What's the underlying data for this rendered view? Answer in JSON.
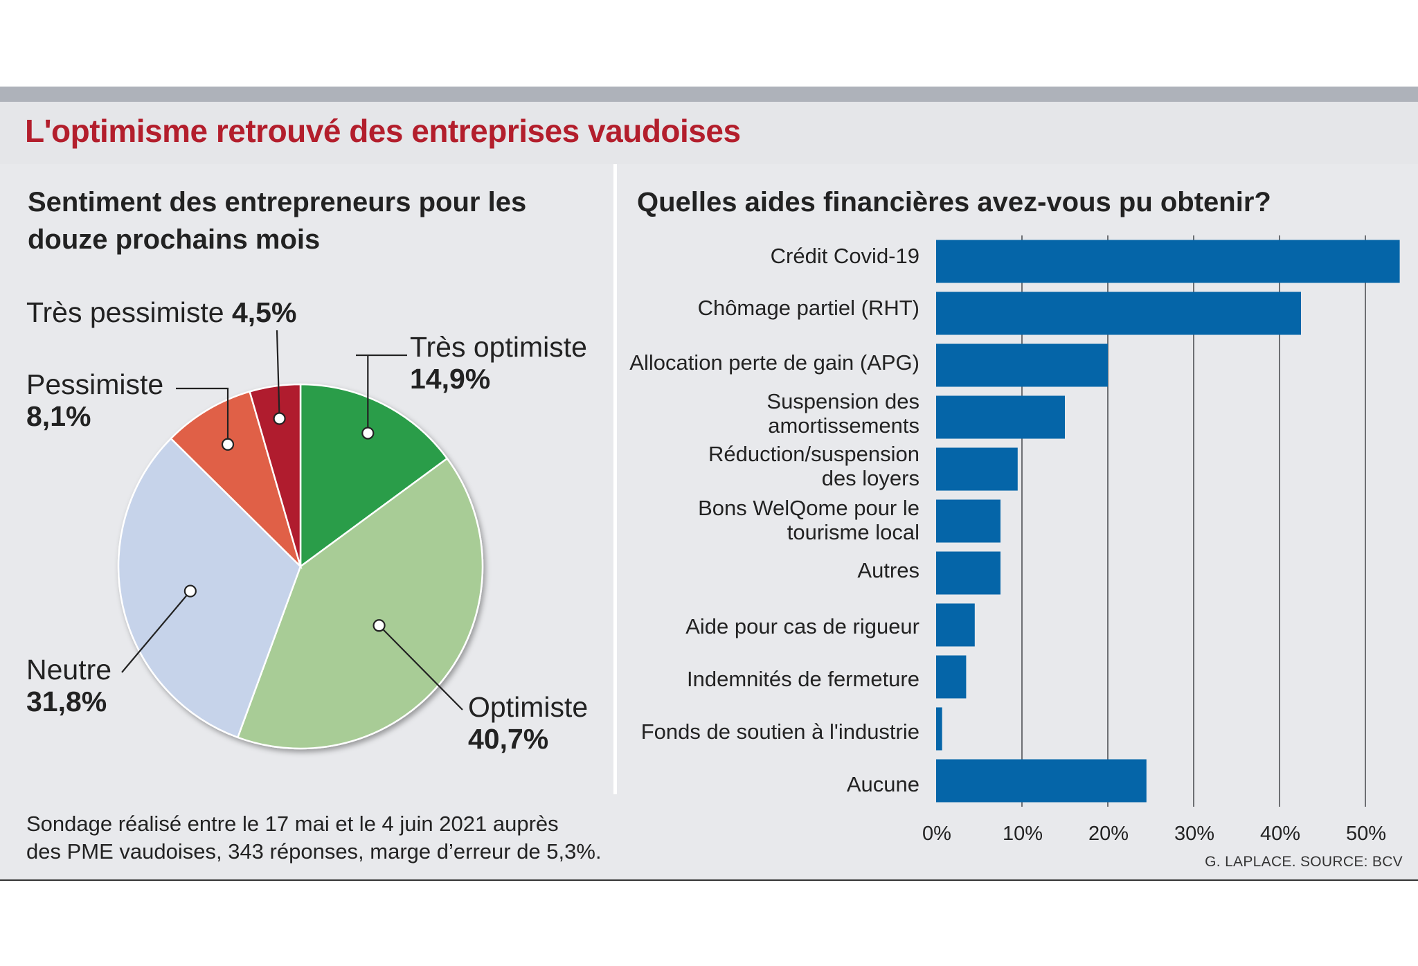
{
  "header": {
    "title": "L'optimisme retrouvé des entreprises vaudoises"
  },
  "chart_data": [
    {
      "type": "pie",
      "title": "Sentiment des entrepreneurs pour les douze prochains mois",
      "slices": [
        {
          "label": "Très optimiste",
          "value": 14.9,
          "display": "14,9%",
          "color": "#2a9d4a"
        },
        {
          "label": "Optimiste",
          "value": 40.7,
          "display": "40,7%",
          "color": "#a8cc96"
        },
        {
          "label": "Neutre",
          "value": 31.8,
          "display": "31,8%",
          "color": "#c6d3ea"
        },
        {
          "label": "Pessimiste",
          "value": 8.1,
          "display": "8,1%",
          "color": "#e06146"
        },
        {
          "label": "Très pessimiste",
          "value": 4.5,
          "display": "4,5%",
          "color": "#b01e2e"
        }
      ]
    },
    {
      "type": "bar",
      "orientation": "horizontal",
      "title": "Quelles aides financières avez-vous pu obtenir?",
      "categories": [
        "Crédit Covid-19",
        "Chômage partiel (RHT)",
        "Allocation perte de gain (APG)",
        "Suspension des\namortissements",
        "Réduction/suspension\ndes loyers",
        "Bons WelQome pour le\ntourisme local",
        "Autres",
        "Aide pour cas de rigueur",
        "Indemnités de fermeture",
        "Fonds de soutien à l'industrie",
        "Aucune"
      ],
      "values": [
        54,
        42.5,
        20,
        15,
        9.5,
        7.5,
        7.5,
        4.5,
        3.5,
        0.7,
        24.5
      ],
      "xlim": [
        0,
        56
      ],
      "xticks": [
        0,
        10,
        20,
        30,
        40,
        50
      ],
      "xtick_labels": [
        "0%",
        "10%",
        "20%",
        "30%",
        "40%",
        "50%"
      ],
      "bar_color": "#0565a8",
      "grid": "vertical"
    }
  ],
  "footnote": "Sondage réalisé entre le 17 mai et le 4 juin 2021 auprès\ndes PME vaudoises, 343 réponses, marge d’erreur de 5,3%.",
  "credit": "G. LAPLACE. SOURCE: BCV"
}
